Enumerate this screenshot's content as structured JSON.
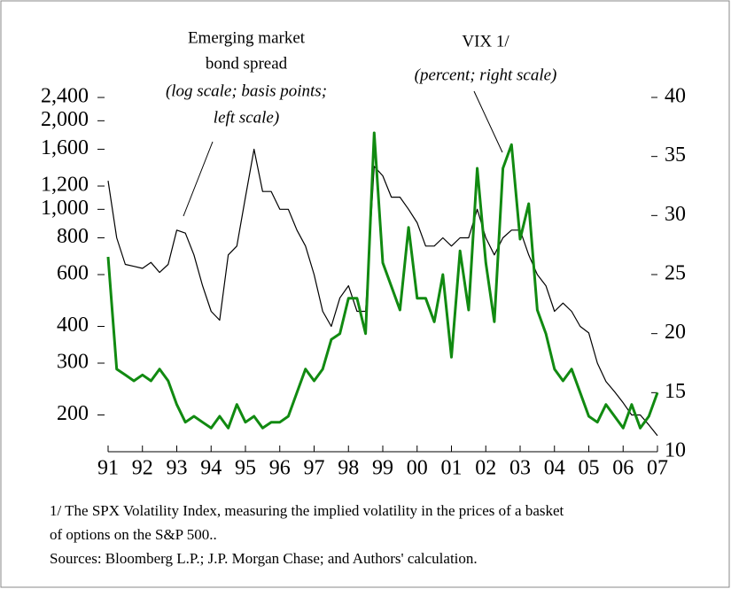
{
  "chart_data": {
    "type": "line",
    "annotations": {
      "left": [
        "Emerging market",
        "bond spread",
        "(log scale; basis points;",
        "left scale)"
      ],
      "right": [
        "VIX  1/",
        "(percent; right scale)"
      ]
    },
    "notes": [
      "1/ The SPX Volatility Index, measuring the implied volatility in the prices of a basket",
      "of options on the S&P 500..",
      "Sources: Bloomberg L.P.; J.P. Morgan Chase; and Authors' calculation."
    ],
    "x": [
      1991,
      1991.25,
      1991.5,
      1991.75,
      1992,
      1992.25,
      1992.5,
      1992.75,
      1993,
      1993.25,
      1993.5,
      1993.75,
      1994,
      1994.25,
      1994.5,
      1994.75,
      1995,
      1995.25,
      1995.5,
      1995.75,
      1996,
      1996.25,
      1996.5,
      1996.75,
      1997,
      1997.25,
      1997.5,
      1997.75,
      1998,
      1998.25,
      1998.5,
      1998.75,
      1999,
      1999.25,
      1999.5,
      1999.75,
      2000,
      2000.25,
      2000.5,
      2000.75,
      2001,
      2001.25,
      2001.5,
      2001.75,
      2002,
      2002.25,
      2002.5,
      2002.75,
      2003,
      2003.25,
      2003.5,
      2003.75,
      2004,
      2004.25,
      2004.5,
      2004.75,
      2005,
      2005.25,
      2005.5,
      2005.75,
      2006,
      2006.25,
      2006.5,
      2006.75,
      2007
    ],
    "xlim": [
      1991,
      2007
    ],
    "xticks": [
      {
        "value": 1991,
        "label": "91"
      },
      {
        "value": 1992,
        "label": "92"
      },
      {
        "value": 1993,
        "label": "93"
      },
      {
        "value": 1994,
        "label": "94"
      },
      {
        "value": 1995,
        "label": "95"
      },
      {
        "value": 1996,
        "label": "96"
      },
      {
        "value": 1997,
        "label": "97"
      },
      {
        "value": 1998,
        "label": "98"
      },
      {
        "value": 1999,
        "label": "99"
      },
      {
        "value": 2000,
        "label": "00"
      },
      {
        "value": 2001,
        "label": "01"
      },
      {
        "value": 2002,
        "label": "02"
      },
      {
        "value": 2003,
        "label": "03"
      },
      {
        "value": 2004,
        "label": "04"
      },
      {
        "value": 2005,
        "label": "05"
      },
      {
        "value": 2006,
        "label": "06"
      },
      {
        "value": 2007,
        "label": "07"
      }
    ],
    "log_y": true,
    "ylim": [
      150,
      2600
    ],
    "yticks": [
      200,
      300,
      400,
      600,
      800,
      {
        "value": 1000,
        "label": "1,000"
      },
      {
        "value": 1200,
        "label": "1,200"
      },
      {
        "value": 1600,
        "label": "1,600"
      },
      {
        "value": 2000,
        "label": "2,000"
      },
      {
        "value": 2400,
        "label": "2,400"
      }
    ],
    "y2lim": [
      10,
      40
    ],
    "y2ticks": [
      10,
      15,
      20,
      25,
      30,
      35,
      40
    ],
    "series": [
      {
        "color": "#000000",
        "width": 1.2,
        "values": [
          1250,
          800,
          650,
          640,
          630,
          660,
          610,
          650,
          850,
          830,
          700,
          550,
          450,
          420,
          700,
          750,
          1100,
          1600,
          1150,
          1150,
          1000,
          1000,
          850,
          750,
          600,
          450,
          400,
          500,
          550,
          450,
          450,
          1400,
          1300,
          1100,
          1100,
          1000,
          900,
          750,
          750,
          800,
          750,
          800,
          800,
          1000,
          800,
          700,
          800,
          850,
          850,
          700,
          600,
          550,
          450,
          480,
          450,
          400,
          380,
          300,
          260,
          240,
          220,
          200,
          200,
          185,
          170
        ]
      },
      {
        "color": "#118a11",
        "width": 3,
        "axis": "y2",
        "values": [
          26.5,
          17,
          16.5,
          16,
          16.5,
          16,
          17,
          16,
          14,
          12.5,
          13,
          12.5,
          12,
          13,
          12,
          14,
          12.5,
          13,
          12,
          12.5,
          12.5,
          13,
          15,
          17,
          16,
          17,
          19.5,
          20,
          23,
          23,
          20,
          37,
          26,
          24,
          22,
          29,
          23,
          23,
          21,
          25,
          18,
          27,
          22,
          34,
          26,
          21,
          34,
          36,
          28,
          31,
          22,
          20,
          17,
          16,
          17,
          15,
          13,
          12.5,
          14,
          13,
          12,
          14,
          12,
          13,
          15
        ]
      }
    ]
  }
}
